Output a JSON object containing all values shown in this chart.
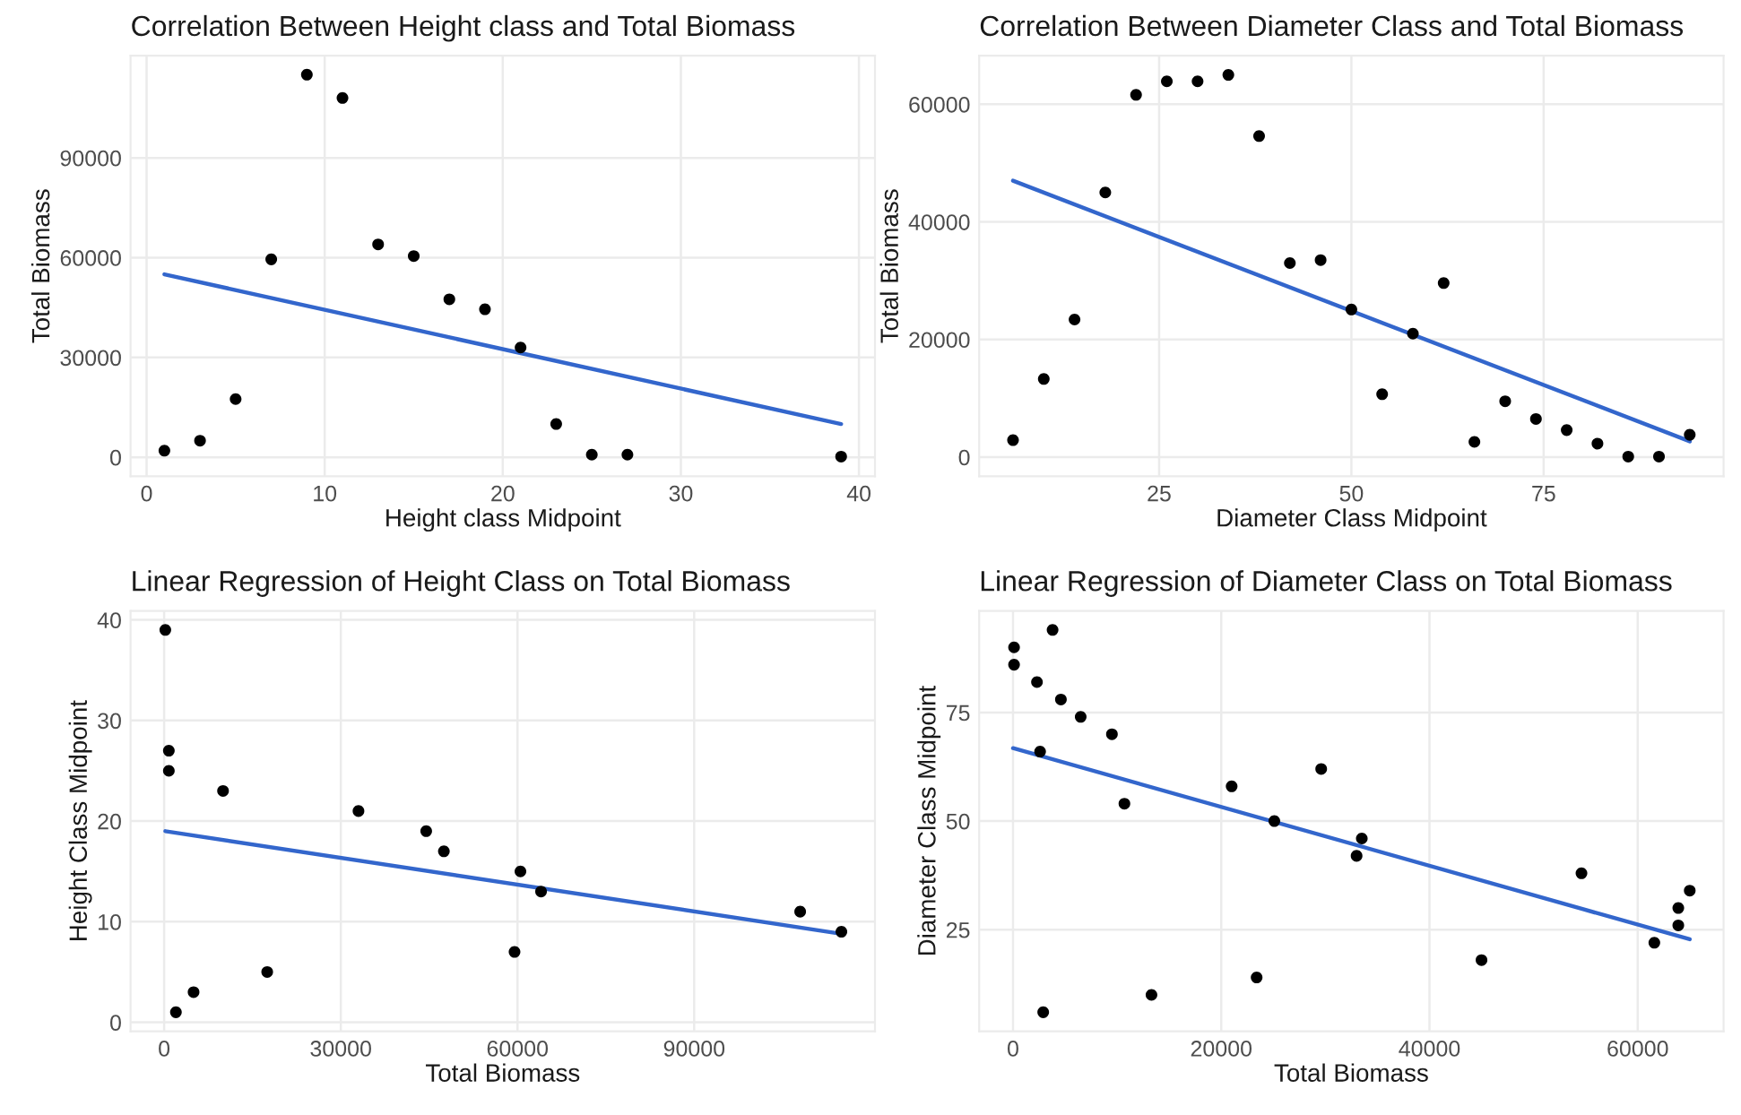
{
  "chart_data": [
    {
      "type": "scatter",
      "title": "Correlation Between Height class and Total Biomass",
      "xlabel": "Height class Midpoint",
      "ylabel": "Total Biomass",
      "xlim": [
        -0.9,
        40.9
      ],
      "ylim": [
        -5700,
        120700
      ],
      "xticks": [
        0,
        10,
        20,
        30,
        40
      ],
      "yticks": [
        0,
        30000,
        60000,
        90000
      ],
      "grid": true,
      "series": [
        {
          "type": "scatter",
          "color": "#000000",
          "marker": "circle",
          "x": [
            1,
            3,
            5,
            7,
            9,
            11,
            13,
            15,
            17,
            19,
            21,
            23,
            25,
            27,
            39
          ],
          "values": [
            2000,
            5000,
            17500,
            59500,
            115000,
            108000,
            64000,
            60500,
            47500,
            44500,
            33000,
            10000,
            800,
            800,
            200
          ]
        },
        {
          "type": "line",
          "color": "#3366cc",
          "x": [
            1,
            39
          ],
          "values": [
            55000,
            10000
          ]
        }
      ]
    },
    {
      "type": "scatter",
      "title": "Correlation Between Diameter Class and Total Biomass",
      "xlabel": "Diameter Class Midpoint",
      "ylabel": "Total Biomass",
      "xlim": [
        1.6,
        98.4
      ],
      "ylim": [
        -3250,
        68250
      ],
      "xticks": [
        25,
        50,
        75
      ],
      "yticks": [
        0,
        20000,
        40000,
        60000
      ],
      "grid": true,
      "series": [
        {
          "type": "scatter",
          "color": "#000000",
          "marker": "circle",
          "x": [
            6,
            10,
            14,
            18,
            22,
            26,
            30,
            34,
            38,
            42,
            46,
            50,
            54,
            58,
            62,
            66,
            70,
            74,
            78,
            82,
            86,
            90,
            94
          ],
          "values": [
            2900,
            13300,
            23400,
            45000,
            61600,
            63900,
            63900,
            65000,
            54600,
            33000,
            33500,
            25100,
            10700,
            21000,
            29600,
            2600,
            9500,
            6500,
            4600,
            2300,
            100,
            100,
            3800
          ]
        },
        {
          "type": "line",
          "color": "#3366cc",
          "x": [
            6,
            94
          ],
          "values": [
            47000,
            2700
          ]
        }
      ]
    },
    {
      "type": "scatter",
      "title": "Linear Regression of Height Class on Total Biomass",
      "xlabel": "Total Biomass",
      "ylabel": "Height Class Midpoint",
      "xlim": [
        -5700,
        120700
      ],
      "ylim": [
        -0.9,
        40.9
      ],
      "xticks": [
        0,
        30000,
        60000,
        90000
      ],
      "yticks": [
        0,
        10,
        20,
        30,
        40
      ],
      "grid": true,
      "series": [
        {
          "type": "scatter",
          "color": "#000000",
          "marker": "circle",
          "x": [
            2000,
            5000,
            17500,
            59500,
            115000,
            108000,
            64000,
            60500,
            47500,
            44500,
            33000,
            10000,
            800,
            800,
            200
          ],
          "values": [
            1,
            3,
            5,
            7,
            9,
            11,
            13,
            15,
            17,
            19,
            21,
            23,
            25,
            27,
            39
          ]
        },
        {
          "type": "line",
          "color": "#3366cc",
          "x": [
            200,
            115000
          ],
          "values": [
            19,
            8.8
          ]
        }
      ]
    },
    {
      "type": "scatter",
      "title": "Linear Regression of Diameter Class on Total Biomass",
      "xlabel": "Total Biomass",
      "ylabel": "Diameter Class Midpoint",
      "xlim": [
        -3250,
        68250
      ],
      "ylim": [
        1.6,
        98.4
      ],
      "xticks": [
        0,
        20000,
        40000,
        60000
      ],
      "yticks": [
        25,
        50,
        75
      ],
      "grid": true,
      "series": [
        {
          "type": "scatter",
          "color": "#000000",
          "marker": "circle",
          "x": [
            2900,
            13300,
            23400,
            45000,
            61600,
            63900,
            63900,
            65000,
            54600,
            33000,
            33500,
            25100,
            10700,
            21000,
            29600,
            2600,
            9500,
            6500,
            4600,
            2300,
            100,
            100,
            3800
          ],
          "values": [
            6,
            10,
            14,
            18,
            22,
            26,
            30,
            34,
            38,
            42,
            46,
            50,
            54,
            58,
            62,
            66,
            70,
            74,
            78,
            82,
            86,
            90,
            94
          ]
        },
        {
          "type": "line",
          "color": "#3366cc",
          "x": [
            0,
            65000
          ],
          "values": [
            66.8,
            22.8
          ]
        }
      ]
    }
  ]
}
